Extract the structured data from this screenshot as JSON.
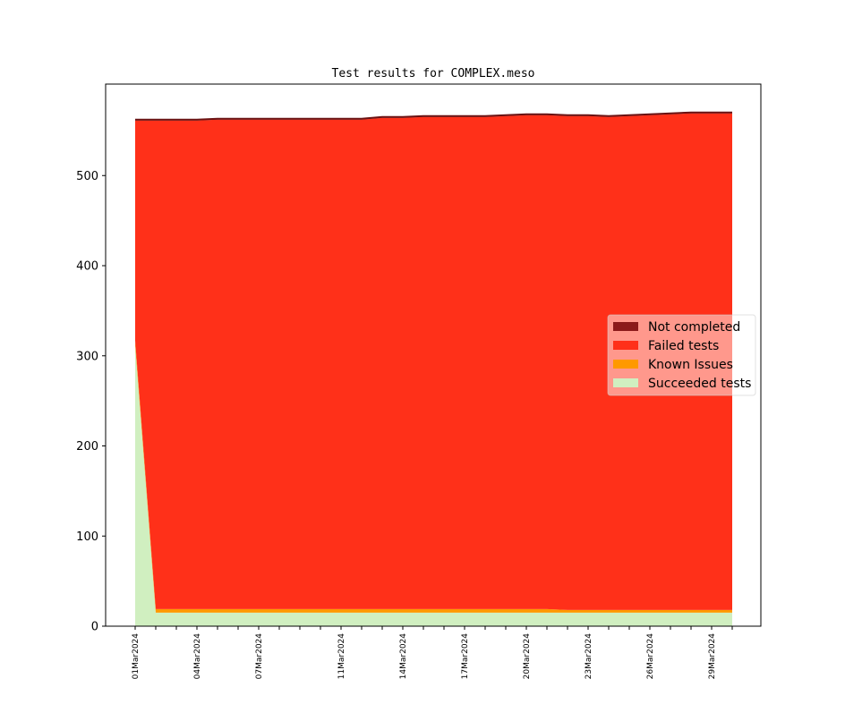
{
  "chart_data": {
    "type": "area",
    "title": "Test results for COMPLEX.meso",
    "xlabel": "",
    "ylabel": "",
    "ylim": [
      0,
      600
    ],
    "yticks": [
      0,
      100,
      200,
      300,
      400,
      500
    ],
    "x": [
      "01Mar2024",
      "02Mar2024",
      "03Mar2024",
      "04Mar2024",
      "05Mar2024",
      "06Mar2024",
      "07Mar2024",
      "08Mar2024",
      "09Mar2024",
      "10Mar2024",
      "11Mar2024",
      "12Mar2024",
      "13Mar2024",
      "14Mar2024",
      "15Mar2024",
      "16Mar2024",
      "17Mar2024",
      "18Mar2024",
      "19Mar2024",
      "20Mar2024",
      "21Mar2024",
      "22Mar2024",
      "23Mar2024",
      "24Mar2024",
      "25Mar2024",
      "26Mar2024",
      "27Mar2024",
      "28Mar2024",
      "29Mar2024",
      "30Mar2024"
    ],
    "xtick_labels": [
      "01Mar2024",
      "04Mar2024",
      "07Mar2024",
      "11Mar2024",
      "14Mar2024",
      "17Mar2024",
      "20Mar2024",
      "23Mar2024",
      "26Mar2024",
      "29Mar2024"
    ],
    "legend_position": "center-right",
    "series": [
      {
        "name": "Succeeded tests",
        "color": "#d0efc0",
        "values": [
          312,
          15,
          15,
          15,
          15,
          15,
          15,
          15,
          15,
          15,
          15,
          15,
          15,
          15,
          15,
          15,
          15,
          15,
          15,
          15,
          15,
          15,
          15,
          15,
          15,
          15,
          15,
          15,
          15,
          15
        ]
      },
      {
        "name": "Known Issues",
        "color": "#ff9900",
        "values": [
          5,
          4,
          4,
          4,
          4,
          4,
          4,
          4,
          4,
          4,
          4,
          4,
          4,
          4,
          4,
          4,
          4,
          4,
          4,
          4,
          4,
          3,
          3,
          3,
          3,
          3,
          3,
          3,
          3,
          3
        ]
      },
      {
        "name": "Failed tests",
        "color": "#ff3019",
        "values": [
          244,
          542,
          542,
          542,
          543,
          543,
          543,
          543,
          543,
          543,
          543,
          543,
          545,
          545,
          546,
          546,
          546,
          546,
          547,
          548,
          548,
          548,
          548,
          547,
          548,
          549,
          550,
          551,
          551,
          551
        ]
      },
      {
        "name": "Not completed",
        "color": "#8b1a1a",
        "values": [
          1,
          1,
          1,
          1,
          1,
          1,
          1,
          1,
          1,
          1,
          1,
          1,
          1,
          1,
          1,
          1,
          1,
          1,
          1,
          1,
          1,
          1,
          1,
          1,
          1,
          1,
          1,
          1,
          1,
          1
        ]
      }
    ]
  }
}
